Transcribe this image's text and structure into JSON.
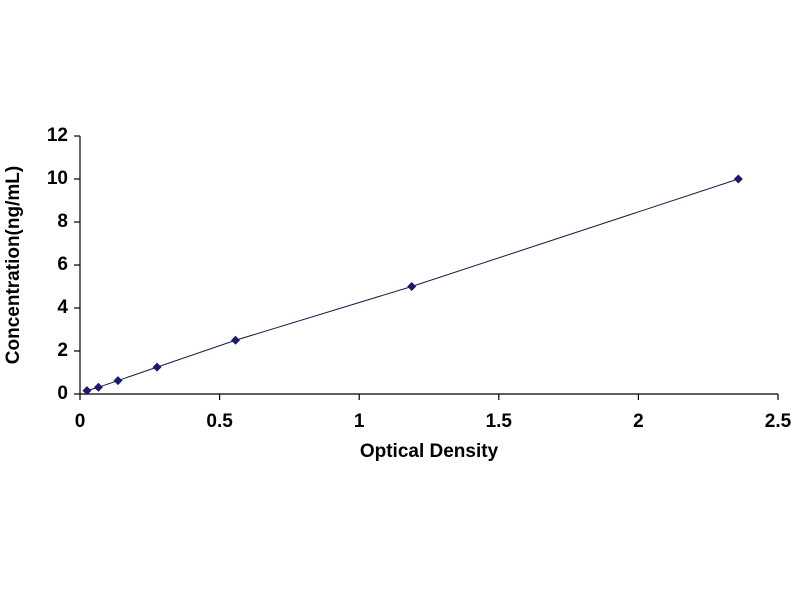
{
  "chart_data": {
    "type": "line",
    "x_label": "Optical Density",
    "y_label": "Concentration(ng/mL)",
    "x": [
      0.025,
      0.066,
      0.136,
      0.276,
      0.557,
      1.188,
      2.358
    ],
    "values": [
      0.156,
      0.312,
      0.625,
      1.25,
      2.5,
      5,
      10
    ],
    "color": "#1a1a6e",
    "line_color": "#1a1a4a",
    "marker": "diamond",
    "xlim": [
      0,
      2.5
    ],
    "xticks": [
      0,
      0.5,
      1,
      1.5,
      2,
      2.5
    ],
    "ylim": [
      0,
      12
    ],
    "yticks": [
      0,
      2,
      4,
      6,
      8,
      10,
      12
    ],
    "grid": false
  }
}
